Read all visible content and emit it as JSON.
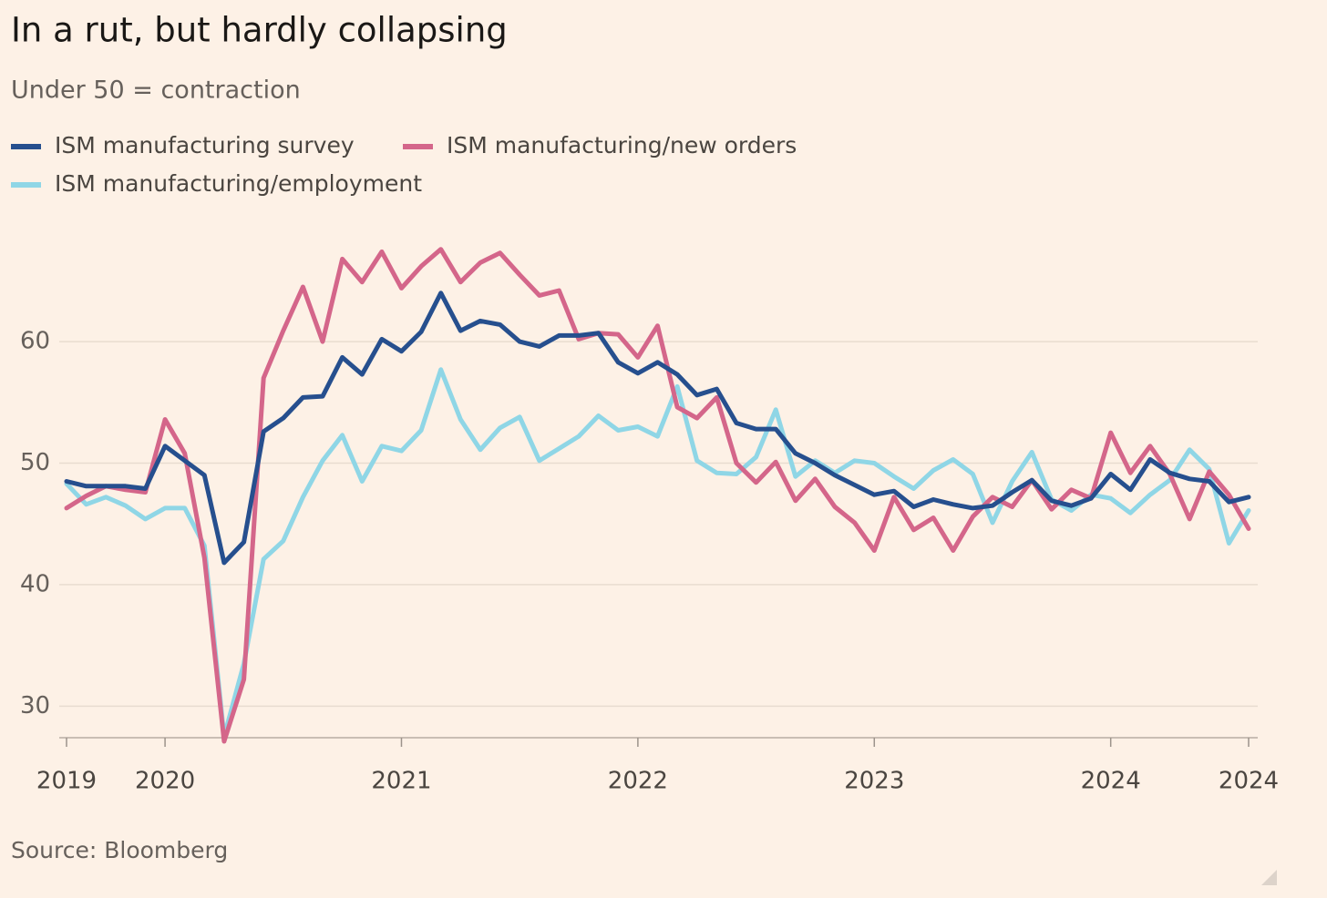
{
  "chart_data": {
    "type": "line",
    "title": "In a rut, but hardly collapsing",
    "subtitle": "Under 50 = contraction",
    "source": "Source: Bloomberg",
    "categories": [
      "2019",
      null,
      null,
      null,
      null,
      "2020",
      null,
      null,
      null,
      null,
      null,
      null,
      null,
      null,
      null,
      null,
      null,
      "2021",
      null,
      null,
      null,
      null,
      null,
      null,
      null,
      null,
      null,
      null,
      null,
      "2022",
      null,
      null,
      null,
      null,
      null,
      null,
      null,
      null,
      null,
      null,
      null,
      "2023",
      null,
      null,
      null,
      null,
      null,
      null,
      null,
      null,
      null,
      null,
      null,
      "2024",
      null,
      null,
      null,
      null,
      null,
      null,
      "2024"
    ],
    "series": [
      {
        "name": "ISM manufacturing survey",
        "color": "#264f8e",
        "values": [
          48.5,
          48.1,
          48.1,
          48.1,
          47.9,
          51.4,
          50.2,
          49.0,
          41.8,
          43.5,
          52.6,
          53.7,
          55.4,
          55.5,
          58.7,
          57.3,
          60.2,
          59.2,
          60.8,
          64.0,
          60.9,
          61.7,
          61.4,
          60.0,
          59.6,
          60.5,
          60.5,
          60.7,
          58.3,
          57.4,
          58.3,
          57.3,
          55.6,
          56.1,
          53.3,
          52.8,
          52.8,
          50.8,
          50.0,
          49.0,
          48.2,
          47.4,
          47.7,
          46.4,
          47.0,
          46.6,
          46.3,
          46.5,
          47.6,
          48.6,
          46.9,
          46.5,
          47.1,
          49.1,
          47.8,
          50.3,
          49.2,
          48.7,
          48.5,
          46.8,
          47.2
        ]
      },
      {
        "name": "ISM manufacturing/new orders",
        "color": "#d4668a",
        "values": [
          46.3,
          47.3,
          48.1,
          47.8,
          47.6,
          53.6,
          50.8,
          42.2,
          27.1,
          32.2,
          57.0,
          60.9,
          64.5,
          60.0,
          66.8,
          64.9,
          67.4,
          64.4,
          66.2,
          67.6,
          64.9,
          66.5,
          67.3,
          65.5,
          63.8,
          64.2,
          60.2,
          60.7,
          60.6,
          58.7,
          61.3,
          54.6,
          53.7,
          55.4,
          50.0,
          48.4,
          50.1,
          46.9,
          48.7,
          46.4,
          45.1,
          42.8,
          47.2,
          44.5,
          45.5,
          42.8,
          45.6,
          47.2,
          46.4,
          48.6,
          46.2,
          47.8,
          47.1,
          52.5,
          49.2,
          51.4,
          49.1,
          45.4,
          49.3,
          47.4,
          44.6
        ]
      },
      {
        "name": "ISM manufacturing/employment",
        "color": "#8fd6e6",
        "values": [
          48.3,
          46.6,
          47.2,
          46.5,
          45.4,
          46.3,
          46.3,
          43.2,
          27.5,
          33.5,
          42.1,
          43.6,
          47.2,
          50.2,
          52.3,
          48.5,
          51.4,
          51.0,
          52.7,
          57.7,
          53.6,
          51.1,
          52.9,
          53.8,
          50.2,
          51.2,
          52.2,
          53.9,
          52.7,
          53.0,
          52.2,
          56.3,
          50.2,
          49.2,
          49.1,
          50.5,
          54.4,
          48.9,
          50.2,
          49.2,
          50.2,
          50.0,
          48.9,
          47.9,
          49.4,
          50.3,
          49.1,
          45.1,
          48.5,
          50.9,
          47.0,
          46.1,
          47.4,
          47.1,
          45.9,
          47.4,
          48.6,
          51.1,
          49.5,
          43.4,
          46.1
        ]
      }
    ],
    "ylim": [
      27.4,
      69.6
    ],
    "yticks": [
      30,
      40,
      50,
      60
    ],
    "grid": true
  }
}
